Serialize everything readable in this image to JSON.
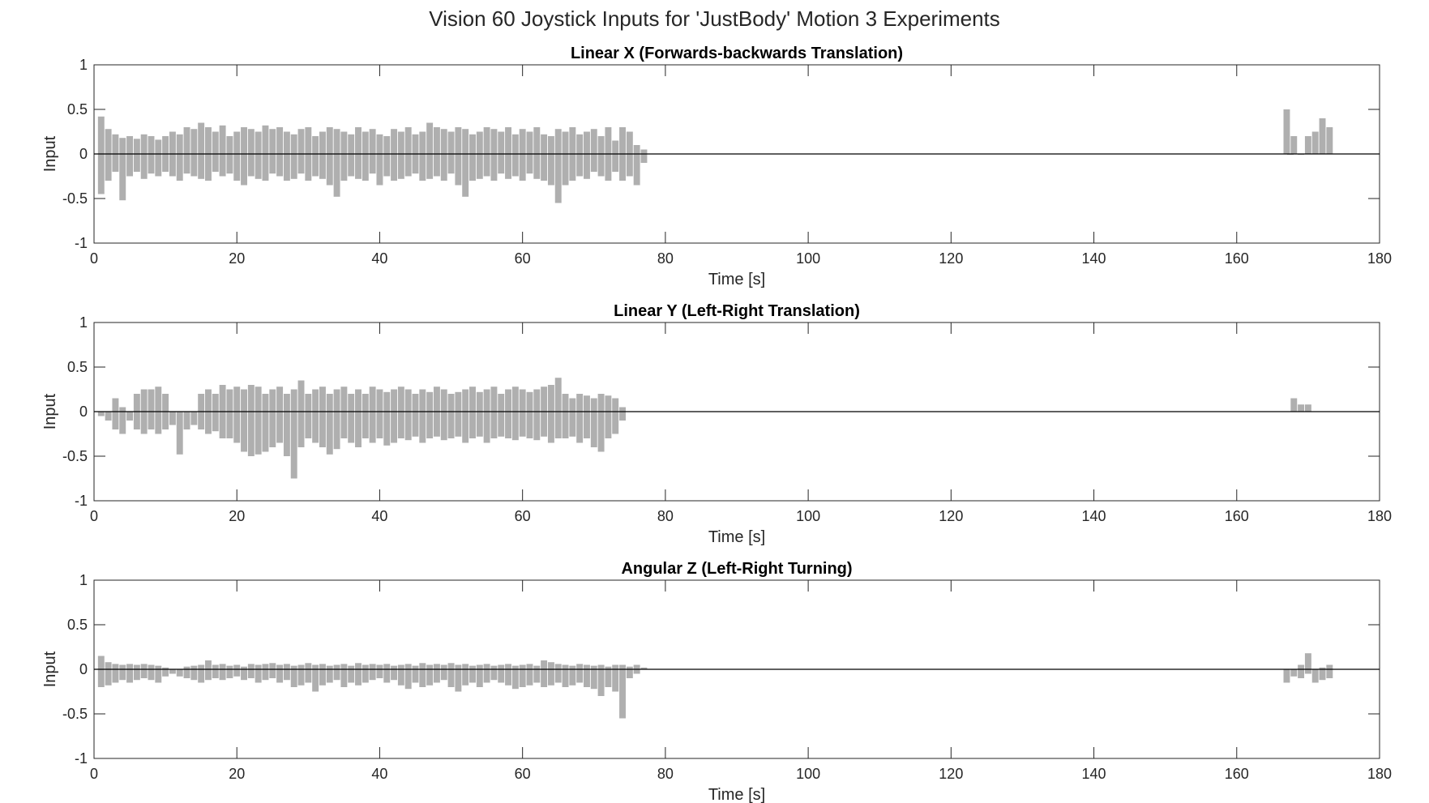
{
  "suptitle": "Vision 60 Joystick Inputs for 'JustBody' Motion 3 Experiments",
  "colors": {
    "trace": "#6e6e6e",
    "zero_line": "#000000",
    "axes": "#262626",
    "background": "#ffffff"
  },
  "chart_data": [
    {
      "type": "area",
      "title": "Linear X (Forwards-backwards Translation)",
      "xlabel": "Time [s]",
      "ylabel": "Input",
      "xlim": [
        0,
        180
      ],
      "ylim": [
        -1,
        1
      ],
      "xticks": [
        "0",
        "20",
        "40",
        "60",
        "80",
        "100",
        "120",
        "140",
        "160",
        "180"
      ],
      "yticks": [
        "-1",
        "-0.5",
        "0",
        "0.5",
        "1"
      ],
      "grid": false,
      "series": [
        {
          "x": [
            1,
            2,
            3,
            4,
            5,
            6,
            7,
            8,
            9,
            10,
            11,
            12,
            13,
            14,
            15,
            16,
            17,
            18,
            19,
            20,
            21,
            22,
            23,
            24,
            25,
            26,
            27,
            28,
            29,
            30,
            31,
            32,
            33,
            34,
            35,
            36,
            37,
            38,
            39,
            40,
            41,
            42,
            43,
            44,
            45,
            46,
            47,
            48,
            49,
            50,
            51,
            52,
            53,
            54,
            55,
            56,
            57,
            58,
            59,
            60,
            61,
            62,
            63,
            64,
            65,
            66,
            67,
            68,
            69,
            70,
            71,
            72,
            73,
            74,
            75,
            76,
            77,
            167,
            167.5,
            168,
            169,
            170,
            171,
            172,
            173
          ],
          "max": [
            0.42,
            0.28,
            0.22,
            0.18,
            0.2,
            0.17,
            0.22,
            0.2,
            0.16,
            0.2,
            0.25,
            0.22,
            0.3,
            0.28,
            0.35,
            0.3,
            0.25,
            0.32,
            0.2,
            0.25,
            0.3,
            0.28,
            0.25,
            0.32,
            0.28,
            0.3,
            0.25,
            0.22,
            0.28,
            0.3,
            0.2,
            0.25,
            0.3,
            0.28,
            0.25,
            0.22,
            0.3,
            0.25,
            0.28,
            0.22,
            0.2,
            0.28,
            0.25,
            0.3,
            0.22,
            0.25,
            0.35,
            0.3,
            0.28,
            0.25,
            0.3,
            0.28,
            0.22,
            0.25,
            0.3,
            0.28,
            0.25,
            0.3,
            0.22,
            0.28,
            0.25,
            0.3,
            0.22,
            0.2,
            0.28,
            0.25,
            0.3,
            0.22,
            0.25,
            0.28,
            0.2,
            0.3,
            0.15,
            0.3,
            0.25,
            0.1,
            0.05,
            0.5,
            0.0,
            0.2,
            0.0,
            0.2,
            0.25,
            0.4,
            0.3
          ],
          "min": [
            -0.45,
            -0.3,
            -0.2,
            -0.52,
            -0.25,
            -0.2,
            -0.28,
            -0.22,
            -0.25,
            -0.2,
            -0.25,
            -0.3,
            -0.22,
            -0.25,
            -0.28,
            -0.3,
            -0.2,
            -0.25,
            -0.22,
            -0.3,
            -0.35,
            -0.25,
            -0.28,
            -0.3,
            -0.22,
            -0.25,
            -0.3,
            -0.28,
            -0.22,
            -0.3,
            -0.25,
            -0.28,
            -0.35,
            -0.48,
            -0.3,
            -0.25,
            -0.28,
            -0.3,
            -0.22,
            -0.35,
            -0.25,
            -0.3,
            -0.28,
            -0.25,
            -0.22,
            -0.3,
            -0.28,
            -0.25,
            -0.3,
            -0.22,
            -0.35,
            -0.48,
            -0.3,
            -0.28,
            -0.25,
            -0.3,
            -0.22,
            -0.28,
            -0.25,
            -0.3,
            -0.22,
            -0.28,
            -0.3,
            -0.35,
            -0.55,
            -0.35,
            -0.3,
            -0.25,
            -0.28,
            -0.2,
            -0.25,
            -0.3,
            -0.2,
            -0.3,
            -0.25,
            -0.35,
            -0.1,
            0.0,
            0.0,
            0.0,
            0.0,
            0.0,
            0.0,
            0.0,
            0.0
          ]
        }
      ]
    },
    {
      "type": "area",
      "title": "Linear Y (Left-Right Translation)",
      "xlabel": "Time [s]",
      "ylabel": "Input",
      "xlim": [
        0,
        180
      ],
      "ylim": [
        -1,
        1
      ],
      "xticks": [
        "0",
        "20",
        "40",
        "60",
        "80",
        "100",
        "120",
        "140",
        "160",
        "180"
      ],
      "yticks": [
        "-1",
        "-0.5",
        "0",
        "0.5",
        "1"
      ],
      "grid": false,
      "series": [
        {
          "x": [
            1,
            2,
            3,
            4,
            5,
            6,
            7,
            8,
            9,
            10,
            11,
            12,
            13,
            14,
            15,
            16,
            17,
            18,
            19,
            20,
            21,
            22,
            23,
            24,
            25,
            26,
            27,
            28,
            29,
            30,
            31,
            32,
            33,
            34,
            35,
            36,
            37,
            38,
            39,
            40,
            41,
            42,
            43,
            44,
            45,
            46,
            47,
            48,
            49,
            50,
            51,
            52,
            53,
            54,
            55,
            56,
            57,
            58,
            59,
            60,
            61,
            62,
            63,
            64,
            65,
            66,
            67,
            68,
            69,
            70,
            71,
            72,
            73,
            74,
            168,
            169,
            170
          ],
          "max": [
            0.0,
            0.0,
            0.15,
            0.05,
            0.0,
            0.2,
            0.25,
            0.25,
            0.28,
            0.2,
            0.0,
            0.0,
            0.0,
            0.0,
            0.2,
            0.25,
            0.2,
            0.3,
            0.25,
            0.28,
            0.25,
            0.3,
            0.28,
            0.2,
            0.25,
            0.28,
            0.2,
            0.25,
            0.35,
            0.2,
            0.25,
            0.28,
            0.2,
            0.25,
            0.28,
            0.2,
            0.25,
            0.2,
            0.28,
            0.25,
            0.22,
            0.25,
            0.28,
            0.25,
            0.2,
            0.25,
            0.22,
            0.28,
            0.25,
            0.2,
            0.22,
            0.25,
            0.28,
            0.22,
            0.25,
            0.28,
            0.2,
            0.25,
            0.28,
            0.25,
            0.22,
            0.25,
            0.28,
            0.3,
            0.38,
            0.2,
            0.15,
            0.2,
            0.18,
            0.15,
            0.2,
            0.18,
            0.15,
            0.05,
            0.15,
            0.08,
            0.08
          ],
          "min": [
            -0.05,
            -0.1,
            -0.2,
            -0.25,
            -0.1,
            -0.2,
            -0.25,
            -0.2,
            -0.25,
            -0.2,
            -0.15,
            -0.48,
            -0.2,
            -0.15,
            -0.2,
            -0.25,
            -0.22,
            -0.3,
            -0.3,
            -0.35,
            -0.45,
            -0.5,
            -0.48,
            -0.45,
            -0.4,
            -0.35,
            -0.5,
            -0.75,
            -0.4,
            -0.3,
            -0.35,
            -0.4,
            -0.48,
            -0.42,
            -0.3,
            -0.35,
            -0.4,
            -0.3,
            -0.35,
            -0.3,
            -0.38,
            -0.35,
            -0.3,
            -0.32,
            -0.28,
            -0.35,
            -0.3,
            -0.28,
            -0.32,
            -0.3,
            -0.28,
            -0.35,
            -0.3,
            -0.28,
            -0.35,
            -0.3,
            -0.28,
            -0.3,
            -0.32,
            -0.28,
            -0.3,
            -0.32,
            -0.28,
            -0.35,
            -0.3,
            -0.3,
            -0.28,
            -0.35,
            -0.3,
            -0.4,
            -0.45,
            -0.3,
            -0.25,
            -0.1,
            0.0,
            0.0,
            0.0
          ]
        }
      ]
    },
    {
      "type": "area",
      "title": "Angular Z (Left-Right Turning)",
      "xlabel": "Time [s]",
      "ylabel": "Input",
      "xlim": [
        0,
        180
      ],
      "ylim": [
        -1,
        1
      ],
      "xticks": [
        "0",
        "20",
        "40",
        "60",
        "80",
        "100",
        "120",
        "140",
        "160",
        "180"
      ],
      "yticks": [
        "-1",
        "-0.5",
        "0",
        "0.5",
        "1"
      ],
      "grid": false,
      "series": [
        {
          "x": [
            1,
            2,
            3,
            4,
            5,
            6,
            7,
            8,
            9,
            10,
            11,
            12,
            13,
            14,
            15,
            16,
            17,
            18,
            19,
            20,
            21,
            22,
            23,
            24,
            25,
            26,
            27,
            28,
            29,
            30,
            31,
            32,
            33,
            34,
            35,
            36,
            37,
            38,
            39,
            40,
            41,
            42,
            43,
            44,
            45,
            46,
            47,
            48,
            49,
            50,
            51,
            52,
            53,
            54,
            55,
            56,
            57,
            58,
            59,
            60,
            61,
            62,
            63,
            64,
            65,
            66,
            67,
            68,
            69,
            70,
            71,
            72,
            73,
            74,
            75,
            76,
            77,
            167,
            168,
            169,
            170,
            171,
            172,
            173
          ],
          "max": [
            0.15,
            0.08,
            0.06,
            0.05,
            0.06,
            0.05,
            0.06,
            0.05,
            0.04,
            0.02,
            0.0,
            0.0,
            0.03,
            0.04,
            0.05,
            0.1,
            0.05,
            0.06,
            0.04,
            0.05,
            0.03,
            0.06,
            0.05,
            0.06,
            0.07,
            0.05,
            0.06,
            0.04,
            0.05,
            0.07,
            0.05,
            0.06,
            0.04,
            0.05,
            0.06,
            0.04,
            0.07,
            0.05,
            0.06,
            0.05,
            0.06,
            0.04,
            0.05,
            0.06,
            0.04,
            0.07,
            0.05,
            0.06,
            0.05,
            0.07,
            0.05,
            0.06,
            0.04,
            0.05,
            0.06,
            0.04,
            0.05,
            0.06,
            0.04,
            0.05,
            0.06,
            0.04,
            0.1,
            0.08,
            0.06,
            0.05,
            0.04,
            0.06,
            0.05,
            0.04,
            0.05,
            0.03,
            0.05,
            0.05,
            0.03,
            0.05,
            0.02,
            0.0,
            0.0,
            0.05,
            0.18,
            0.0,
            0.02,
            0.05
          ],
          "min": [
            -0.2,
            -0.18,
            -0.15,
            -0.12,
            -0.15,
            -0.12,
            -0.1,
            -0.12,
            -0.15,
            -0.08,
            -0.05,
            -0.08,
            -0.1,
            -0.12,
            -0.15,
            -0.12,
            -0.1,
            -0.12,
            -0.1,
            -0.08,
            -0.12,
            -0.1,
            -0.15,
            -0.12,
            -0.1,
            -0.15,
            -0.12,
            -0.2,
            -0.18,
            -0.15,
            -0.25,
            -0.18,
            -0.15,
            -0.12,
            -0.2,
            -0.15,
            -0.18,
            -0.15,
            -0.12,
            -0.1,
            -0.15,
            -0.12,
            -0.18,
            -0.22,
            -0.15,
            -0.2,
            -0.18,
            -0.15,
            -0.12,
            -0.2,
            -0.25,
            -0.18,
            -0.15,
            -0.2,
            -0.15,
            -0.12,
            -0.15,
            -0.18,
            -0.22,
            -0.2,
            -0.18,
            -0.15,
            -0.2,
            -0.18,
            -0.15,
            -0.2,
            -0.18,
            -0.15,
            -0.2,
            -0.22,
            -0.3,
            -0.2,
            -0.25,
            -0.55,
            -0.1,
            -0.05,
            0.0,
            -0.15,
            -0.08,
            -0.1,
            -0.05,
            -0.15,
            -0.12,
            -0.1
          ]
        }
      ]
    }
  ]
}
